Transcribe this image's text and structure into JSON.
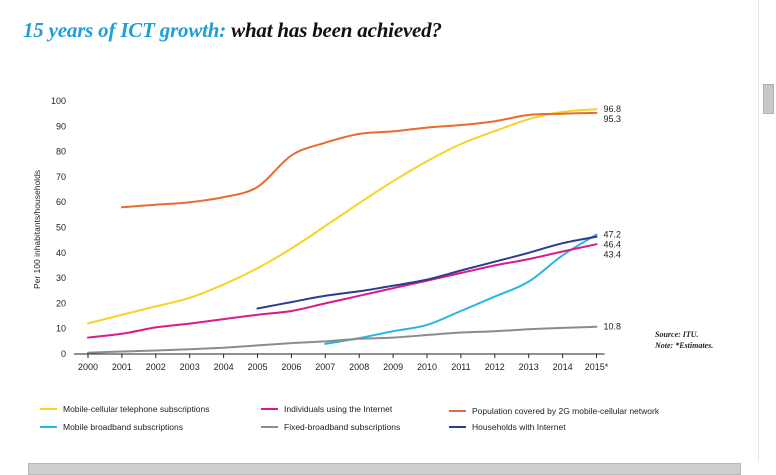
{
  "page": {
    "title_accent": "15 years of ICT growth:",
    "title_rest": "what has been achieved?"
  },
  "source_note": {
    "line1": "Source: ITU.",
    "line2": "Note: *Estimates."
  },
  "colors": {
    "title_accent": "#1ea0d6",
    "mobile_cellular": "#f5d327",
    "mobile_broadband": "#26b6e3",
    "internet_users": "#d91a8c",
    "fixed_broadband": "#8c8c8c",
    "population_2g": "#e86b2f",
    "households_internet": "#2a3d8f"
  },
  "chart_data": {
    "type": "line",
    "title": "15 years of ICT growth: what has been achieved?",
    "xlabel": "",
    "ylabel": "Per 100 inhabitants/households",
    "x": [
      "2000",
      "2001",
      "2002",
      "2003",
      "2004",
      "2005",
      "2006",
      "2007",
      "2008",
      "2009",
      "2010",
      "2011",
      "2012",
      "2013",
      "2014",
      "2015*"
    ],
    "ylim": [
      0,
      100
    ],
    "yticks": [
      0,
      10,
      20,
      30,
      40,
      50,
      60,
      70,
      80,
      90,
      100
    ],
    "ytick_labels": [
      "0",
      "10",
      "20",
      "30",
      "40",
      "50",
      "60",
      "70",
      "80",
      "90",
      "100"
    ],
    "grid": false,
    "legend_position": "bottom",
    "series": [
      {
        "name": "Mobile-cellular telephone subscriptions",
        "color_key": "mobile_cellular",
        "values": [
          12.1,
          15.5,
          18.8,
          22.2,
          27.5,
          33.9,
          41.7,
          50.6,
          59.6,
          68.3,
          76.2,
          83.0,
          88.1,
          92.8,
          95.7,
          96.8
        ],
        "end_label": "96.8"
      },
      {
        "name": "Mobile broadband subscriptions",
        "color_key": "mobile_broadband",
        "values": [
          null,
          null,
          null,
          null,
          null,
          null,
          null,
          4.0,
          6.3,
          9.0,
          11.5,
          17.0,
          22.7,
          28.6,
          39.0,
          47.2
        ],
        "end_label": "47.2"
      },
      {
        "name": "Individuals using the Internet",
        "color_key": "internet_users",
        "values": [
          6.5,
          8.0,
          10.5,
          12.0,
          13.8,
          15.5,
          17.0,
          20.0,
          23.0,
          26.0,
          29.0,
          32.0,
          35.0,
          37.5,
          40.5,
          43.4
        ],
        "end_label": "43.4"
      },
      {
        "name": "Fixed-broadband subscriptions",
        "color_key": "fixed_broadband",
        "values": [
          0.5,
          1.0,
          1.4,
          1.9,
          2.5,
          3.4,
          4.3,
          5.0,
          6.0,
          6.5,
          7.5,
          8.5,
          9.0,
          9.8,
          10.3,
          10.8
        ],
        "end_label": "10.8"
      },
      {
        "name": "Population covered by 2G mobile-cellular network",
        "color_key": "population_2g",
        "values": [
          null,
          58.0,
          59.0,
          60.0,
          62.0,
          66.0,
          78.5,
          83.5,
          87.0,
          88.0,
          89.5,
          90.5,
          92.0,
          94.5,
          95.0,
          95.3
        ],
        "end_label": "95.3"
      },
      {
        "name": "Households with Internet",
        "color_key": "households_internet",
        "values": [
          null,
          null,
          null,
          null,
          null,
          18.0,
          20.5,
          23.0,
          24.8,
          27.0,
          29.4,
          33.0,
          36.5,
          40.0,
          43.8,
          46.4
        ],
        "end_label": "46.4"
      }
    ]
  },
  "legend": [
    {
      "label": "Mobile-cellular telephone subscriptions",
      "color_key": "mobile_cellular"
    },
    {
      "label": "Individuals using the Internet",
      "color_key": "internet_users"
    },
    {
      "label": "Population covered by 2G mobile-cellular network",
      "color_key": "population_2g"
    },
    {
      "label": "Mobile broadband subscriptions",
      "color_key": "mobile_broadband"
    },
    {
      "label": "Fixed-broadband subscriptions",
      "color_key": "fixed_broadband"
    },
    {
      "label": "Households with Internet",
      "color_key": "households_internet"
    }
  ]
}
